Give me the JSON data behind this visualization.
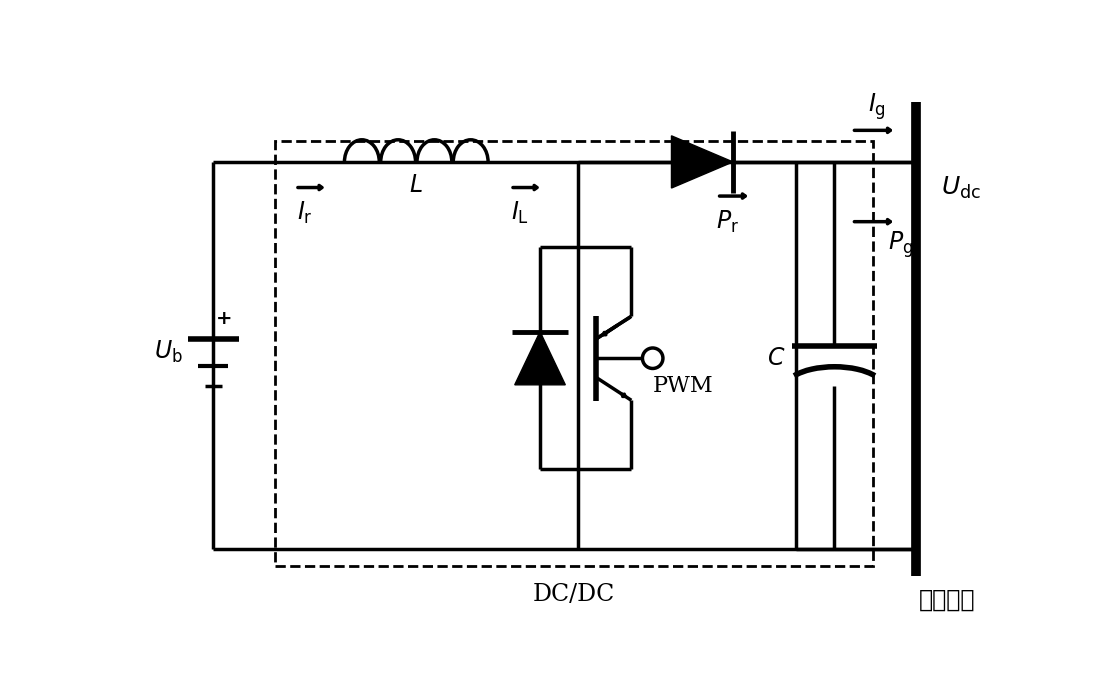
{
  "bg": "#ffffff",
  "lc": "#000000",
  "lw": 2.5,
  "lw_bus": 7.0,
  "lw_dash": 2.0,
  "lw_plate": 4.0,
  "fs": 17,
  "fig_w": 11.12,
  "fig_h": 6.95,
  "labels": {
    "Ub": "$U_{\\mathrm{b}}$",
    "Ir": "$I_{\\mathrm{r}}$",
    "IL": "$I_{\\mathrm{L}}$",
    "L": "$L$",
    "Pr": "$P_{\\mathrm{r}}$",
    "Pg": "$P_{\\mathrm{g}}$",
    "Ig": "$I_{\\mathrm{g}}$",
    "Udc": "$U_{\\mathrm{dc}}$",
    "C": "$C$",
    "PWM": "PWM",
    "DCDC": "DC/DC",
    "bus": "直流母线"
  }
}
